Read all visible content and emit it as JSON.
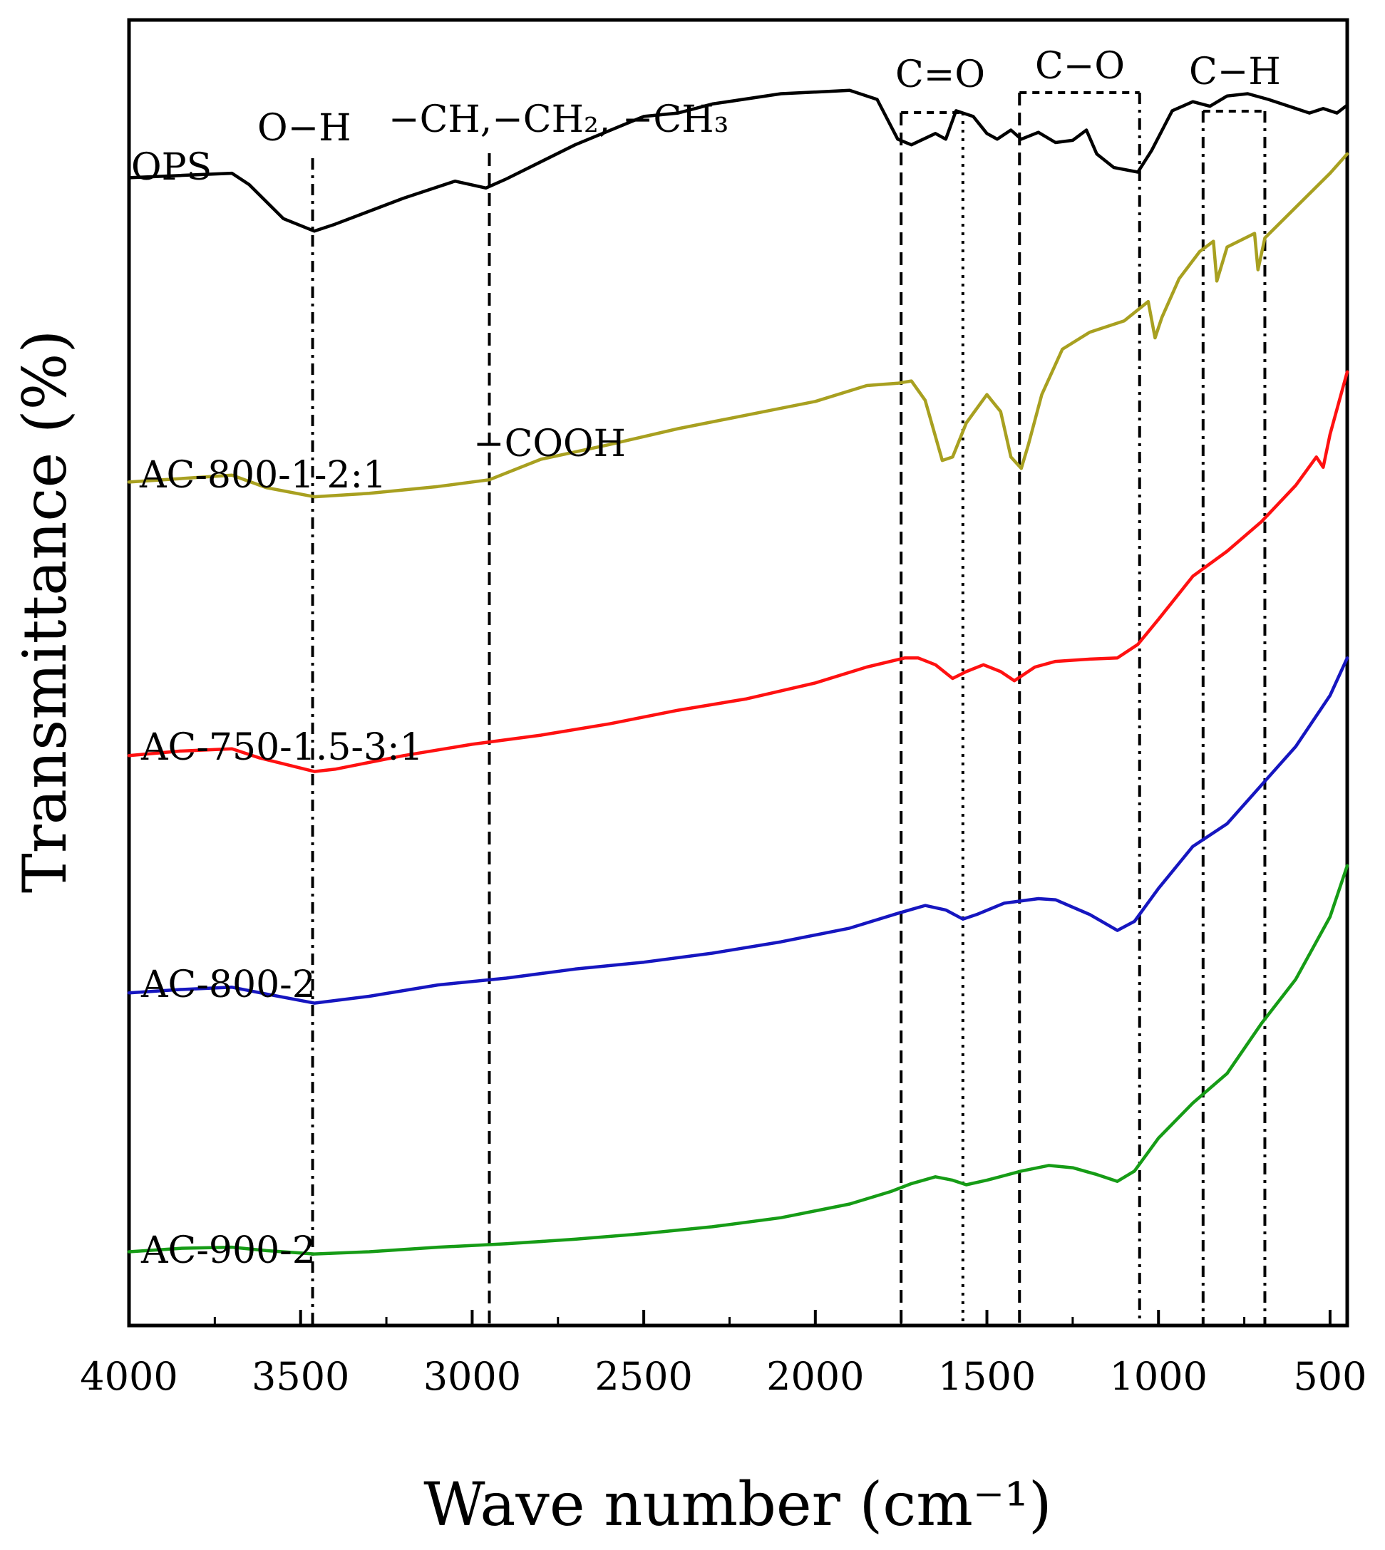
{
  "chart_data": {
    "type": "line",
    "title": "",
    "xlabel": "Wave number (cm⁻¹)",
    "ylabel": "Transmittance (%)",
    "xlim": [
      4000,
      450
    ],
    "x_reversed": true,
    "x_ticks": [
      4000,
      3500,
      3000,
      2500,
      2000,
      1500,
      1000,
      500
    ],
    "y_ticks_shown": false,
    "grid": false,
    "legend": "inline labels at left",
    "series": [
      {
        "name": "OPS",
        "color": "#000000",
        "points": [
          [
            4000,
            98.1
          ],
          [
            3850,
            98.3
          ],
          [
            3700,
            98.5
          ],
          [
            3650,
            97.5
          ],
          [
            3550,
            94.5
          ],
          [
            3460,
            93.4
          ],
          [
            3400,
            94.0
          ],
          [
            3200,
            96.3
          ],
          [
            3050,
            97.8
          ],
          [
            2960,
            97.2
          ],
          [
            2900,
            98.0
          ],
          [
            2700,
            101.0
          ],
          [
            2500,
            103.5
          ],
          [
            2400,
            103.8
          ],
          [
            2300,
            104.6
          ],
          [
            2100,
            105.5
          ],
          [
            1900,
            105.8
          ],
          [
            1820,
            105.0
          ],
          [
            1760,
            101.5
          ],
          [
            1720,
            101.0
          ],
          [
            1650,
            102.0
          ],
          [
            1620,
            101.5
          ],
          [
            1590,
            104.0
          ],
          [
            1540,
            103.5
          ],
          [
            1500,
            102.0
          ],
          [
            1470,
            101.5
          ],
          [
            1430,
            102.3
          ],
          [
            1400,
            101.5
          ],
          [
            1350,
            102.1
          ],
          [
            1300,
            101.2
          ],
          [
            1250,
            101.4
          ],
          [
            1210,
            102.3
          ],
          [
            1180,
            100.2
          ],
          [
            1130,
            99.0
          ],
          [
            1060,
            98.6
          ],
          [
            1020,
            100.5
          ],
          [
            960,
            104.0
          ],
          [
            900,
            104.8
          ],
          [
            850,
            104.4
          ],
          [
            800,
            105.3
          ],
          [
            740,
            105.5
          ],
          [
            680,
            105.0
          ],
          [
            600,
            104.2
          ],
          [
            560,
            103.8
          ],
          [
            520,
            104.2
          ],
          [
            480,
            103.8
          ],
          [
            450,
            104.5
          ]
        ]
      },
      {
        "name": "AC-800-1-2:1",
        "color": "#a8a020",
        "points": [
          [
            4000,
            71.3
          ],
          [
            3850,
            71.6
          ],
          [
            3700,
            71.9
          ],
          [
            3600,
            70.8
          ],
          [
            3460,
            70.0
          ],
          [
            3300,
            70.3
          ],
          [
            3100,
            70.9
          ],
          [
            2950,
            71.5
          ],
          [
            2800,
            73.3
          ],
          [
            2600,
            74.6
          ],
          [
            2400,
            76.0
          ],
          [
            2200,
            77.2
          ],
          [
            2000,
            78.4
          ],
          [
            1850,
            79.8
          ],
          [
            1760,
            80.0
          ],
          [
            1720,
            80.2
          ],
          [
            1680,
            78.5
          ],
          [
            1630,
            73.2
          ],
          [
            1600,
            73.5
          ],
          [
            1560,
            76.5
          ],
          [
            1500,
            79.0
          ],
          [
            1460,
            77.5
          ],
          [
            1430,
            73.5
          ],
          [
            1400,
            72.5
          ],
          [
            1380,
            74.5
          ],
          [
            1340,
            79.0
          ],
          [
            1280,
            83.0
          ],
          [
            1200,
            84.5
          ],
          [
            1100,
            85.5
          ],
          [
            1030,
            87.2
          ],
          [
            1010,
            84.0
          ],
          [
            990,
            85.8
          ],
          [
            940,
            89.2
          ],
          [
            880,
            91.6
          ],
          [
            840,
            92.5
          ],
          [
            830,
            89.0
          ],
          [
            800,
            92.0
          ],
          [
            720,
            93.2
          ],
          [
            710,
            90.0
          ],
          [
            690,
            92.8
          ],
          [
            600,
            95.5
          ],
          [
            500,
            98.5
          ],
          [
            450,
            100.2
          ]
        ]
      },
      {
        "name": "AC-750-1.5-3:1",
        "color": "#ff1111",
        "points": [
          [
            4000,
            47.2
          ],
          [
            3850,
            47.6
          ],
          [
            3700,
            47.8
          ],
          [
            3620,
            47.0
          ],
          [
            3460,
            45.8
          ],
          [
            3400,
            46.0
          ],
          [
            3200,
            47.2
          ],
          [
            3000,
            48.2
          ],
          [
            2800,
            49.0
          ],
          [
            2600,
            50.0
          ],
          [
            2400,
            51.2
          ],
          [
            2200,
            52.2
          ],
          [
            2000,
            53.6
          ],
          [
            1850,
            55.0
          ],
          [
            1740,
            55.8
          ],
          [
            1700,
            55.8
          ],
          [
            1650,
            55.2
          ],
          [
            1600,
            54.0
          ],
          [
            1560,
            54.6
          ],
          [
            1510,
            55.2
          ],
          [
            1460,
            54.6
          ],
          [
            1420,
            53.8
          ],
          [
            1360,
            55.0
          ],
          [
            1300,
            55.5
          ],
          [
            1200,
            55.7
          ],
          [
            1120,
            55.8
          ],
          [
            1060,
            57.0
          ],
          [
            1000,
            59.2
          ],
          [
            900,
            63.0
          ],
          [
            800,
            65.2
          ],
          [
            700,
            67.8
          ],
          [
            600,
            71.0
          ],
          [
            540,
            73.5
          ],
          [
            520,
            72.6
          ],
          [
            500,
            75.5
          ],
          [
            450,
            81.0
          ]
        ]
      },
      {
        "name": "AC-800-2",
        "color": "#1616c0",
        "points": [
          [
            4000,
            26.3
          ],
          [
            3850,
            26.6
          ],
          [
            3700,
            26.8
          ],
          [
            3600,
            26.2
          ],
          [
            3460,
            25.4
          ],
          [
            3300,
            26.0
          ],
          [
            3100,
            27.0
          ],
          [
            2900,
            27.6
          ],
          [
            2700,
            28.4
          ],
          [
            2500,
            29.0
          ],
          [
            2300,
            29.8
          ],
          [
            2100,
            30.8
          ],
          [
            1900,
            32.0
          ],
          [
            1760,
            33.3
          ],
          [
            1680,
            34.0
          ],
          [
            1620,
            33.6
          ],
          [
            1570,
            32.8
          ],
          [
            1530,
            33.2
          ],
          [
            1450,
            34.2
          ],
          [
            1350,
            34.6
          ],
          [
            1300,
            34.5
          ],
          [
            1200,
            33.2
          ],
          [
            1120,
            31.8
          ],
          [
            1070,
            32.6
          ],
          [
            1000,
            35.5
          ],
          [
            900,
            39.2
          ],
          [
            800,
            41.2
          ],
          [
            700,
            44.6
          ],
          [
            600,
            48.0
          ],
          [
            500,
            52.5
          ],
          [
            450,
            55.8
          ]
        ]
      },
      {
        "name": "AC-900-2",
        "color": "#169c16",
        "points": [
          [
            4000,
            3.5
          ],
          [
            3850,
            3.8
          ],
          [
            3700,
            3.9
          ],
          [
            3600,
            3.6
          ],
          [
            3460,
            3.3
          ],
          [
            3300,
            3.5
          ],
          [
            3100,
            3.9
          ],
          [
            2900,
            4.2
          ],
          [
            2700,
            4.6
          ],
          [
            2500,
            5.1
          ],
          [
            2300,
            5.7
          ],
          [
            2100,
            6.5
          ],
          [
            1900,
            7.7
          ],
          [
            1780,
            8.8
          ],
          [
            1720,
            9.5
          ],
          [
            1650,
            10.1
          ],
          [
            1600,
            9.8
          ],
          [
            1560,
            9.4
          ],
          [
            1500,
            9.8
          ],
          [
            1400,
            10.6
          ],
          [
            1320,
            11.1
          ],
          [
            1250,
            10.9
          ],
          [
            1180,
            10.3
          ],
          [
            1120,
            9.7
          ],
          [
            1070,
            10.6
          ],
          [
            1000,
            13.5
          ],
          [
            900,
            16.6
          ],
          [
            800,
            19.2
          ],
          [
            700,
            23.6
          ],
          [
            600,
            27.5
          ],
          [
            500,
            33.0
          ],
          [
            450,
            37.5
          ]
        ]
      }
    ],
    "annotations": [
      {
        "text": "O−H",
        "lines_at": [
          3465
        ]
      },
      {
        "text": "−CH,−CH₂, −CH₃",
        "lines_at": [
          2950
        ]
      },
      {
        "text": "−COOH",
        "lines_at": [
          2950
        ]
      },
      {
        "text": "C=O",
        "lines_at": [
          1750,
          1570
        ]
      },
      {
        "text": "C−O",
        "lines_at": [
          1405,
          1055
        ]
      },
      {
        "text": "C−H",
        "lines_at": [
          870,
          690
        ]
      }
    ]
  }
}
